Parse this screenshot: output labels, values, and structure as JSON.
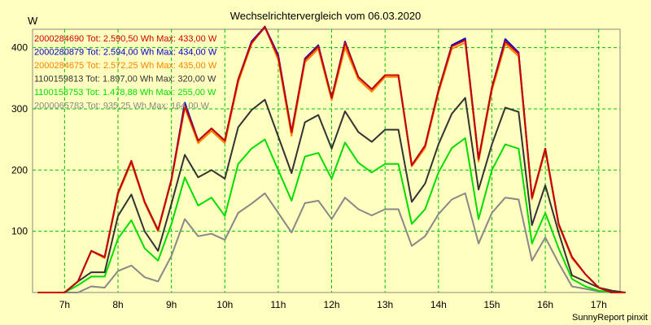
{
  "chart_data": {
    "type": "line",
    "title": "Wechselrichtervergleich vom 06.03.2020",
    "ylabel": "W",
    "footer": "SunnyReport pinxit",
    "ylim": [
      0,
      430
    ],
    "xlim": [
      6.4,
      17.4
    ],
    "y_ticks": [
      100,
      200,
      300,
      400
    ],
    "x_ticks": [
      7,
      8,
      9,
      10,
      11,
      12,
      13,
      14,
      15,
      16,
      17
    ],
    "x_tick_labels": [
      "7h",
      "8h",
      "9h",
      "10h",
      "11h",
      "12h",
      "13h",
      "14h",
      "15h",
      "16h",
      "17h"
    ],
    "grid": true,
    "legend_position": "top-left",
    "x": [
      6.5,
      6.75,
      7.0,
      7.25,
      7.5,
      7.75,
      8.0,
      8.25,
      8.5,
      8.75,
      9.0,
      9.25,
      9.5,
      9.75,
      10.0,
      10.25,
      10.5,
      10.75,
      11.0,
      11.25,
      11.5,
      11.75,
      12.0,
      12.25,
      12.5,
      12.75,
      13.0,
      13.25,
      13.5,
      13.75,
      14.0,
      14.25,
      14.5,
      14.75,
      15.0,
      15.25,
      15.5,
      15.75,
      16.0,
      16.25,
      16.5,
      16.75,
      17.0,
      17.25,
      17.5
    ],
    "series": [
      {
        "name": "2000284690 Tot: 2.590,50 Wh Max: 433,00 W",
        "color": "#cc0000",
        "values": [
          0,
          0,
          0,
          18,
          68,
          58,
          163,
          215,
          148,
          102,
          185,
          305,
          248,
          268,
          248,
          348,
          408,
          433,
          385,
          262,
          380,
          402,
          318,
          408,
          352,
          332,
          355,
          355,
          208,
          240,
          330,
          402,
          412,
          218,
          335,
          410,
          390,
          155,
          235,
          112,
          58,
          30,
          8,
          0,
          0
        ]
      },
      {
        "name": "2000280879 Tot: 2.594,00 Wh Max: 434,00 W",
        "color": "#0000cc",
        "values": [
          0,
          0,
          0,
          18,
          68,
          58,
          163,
          215,
          148,
          102,
          185,
          310,
          248,
          268,
          248,
          348,
          410,
          434,
          388,
          262,
          382,
          404,
          318,
          410,
          352,
          332,
          355,
          355,
          208,
          240,
          330,
          404,
          415,
          218,
          335,
          414,
          392,
          155,
          235,
          112,
          58,
          30,
          8,
          0,
          0
        ]
      },
      {
        "name": "2000284675 Tot: 2.572,25 Wh Max: 435,00 W",
        "color": "#ff8000",
        "values": [
          0,
          0,
          0,
          18,
          68,
          56,
          160,
          212,
          146,
          100,
          183,
          302,
          244,
          264,
          244,
          343,
          406,
          435,
          380,
          256,
          376,
          398,
          314,
          400,
          348,
          328,
          352,
          352,
          206,
          236,
          326,
          398,
          408,
          214,
          330,
          406,
          386,
          152,
          232,
          110,
          56,
          30,
          8,
          0,
          0
        ]
      },
      {
        "name": "1100159813 Tot: 1.897,00 Wh Max: 320,00 W",
        "color": "#333333",
        "values": [
          0,
          0,
          0,
          18,
          33,
          33,
          125,
          160,
          100,
          68,
          145,
          225,
          188,
          200,
          186,
          270,
          298,
          315,
          255,
          195,
          278,
          290,
          235,
          296,
          262,
          246,
          266,
          266,
          148,
          178,
          242,
          292,
          318,
          168,
          242,
          302,
          295,
          110,
          175,
          98,
          28,
          18,
          8,
          3,
          0
        ]
      },
      {
        "name": "1100158753 Tot: 1.478,88 Wh Max: 255,00 W",
        "color": "#00dd00",
        "values": [
          0,
          0,
          0,
          12,
          26,
          26,
          88,
          118,
          72,
          52,
          112,
          188,
          142,
          155,
          125,
          210,
          235,
          250,
          200,
          150,
          222,
          228,
          186,
          245,
          212,
          196,
          210,
          210,
          112,
          136,
          196,
          236,
          252,
          120,
          200,
          242,
          235,
          80,
          130,
          72,
          22,
          10,
          3,
          0,
          0
        ]
      },
      {
        "name": "2000065783 Tot: 935,25 Wh Max: 164,00 W",
        "color": "#888888",
        "values": [
          0,
          0,
          0,
          0,
          10,
          8,
          35,
          44,
          25,
          18,
          60,
          120,
          92,
          96,
          86,
          130,
          145,
          162,
          130,
          98,
          146,
          150,
          120,
          155,
          136,
          126,
          136,
          136,
          76,
          92,
          128,
          152,
          162,
          80,
          130,
          155,
          152,
          52,
          90,
          48,
          10,
          6,
          2,
          0,
          0
        ]
      }
    ]
  }
}
